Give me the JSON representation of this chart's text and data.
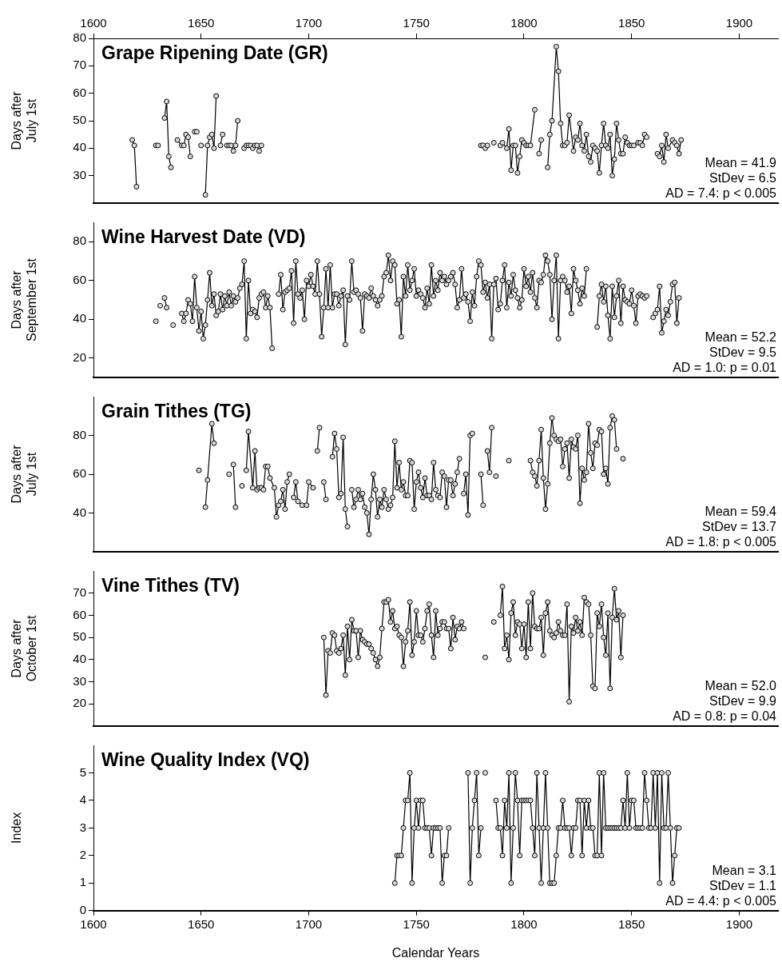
{
  "chart_data": [
    {
      "type": "line",
      "title": "Grape Ripening Date (GR)",
      "ylabel": "Days after July 1st",
      "color": "#000000",
      "marker": "circle",
      "tick_labels": "y",
      "xlim": [
        1600,
        1918
      ],
      "x2lim": [
        1600,
        1918
      ],
      "x2ticks": [
        1600,
        1650,
        1700,
        1750,
        1800,
        1850,
        1900
      ],
      "ylim": [
        20,
        80
      ],
      "yticks": [
        30,
        40,
        50,
        60,
        70,
        80
      ],
      "annotations": [
        "Mean = 41.9",
        "StDev = 6.5",
        "AD = 7.4: p < 0.005"
      ],
      "x": [
        1618,
        1619,
        1620,
        1625,
        1629,
        1629.5,
        1630,
        1632,
        1633,
        1634,
        1635,
        1636,
        1638,
        1639,
        1641,
        1642,
        1643,
        1644,
        1645,
        1646,
        1647,
        1647.5,
        1648,
        1649,
        1650,
        1651,
        1652,
        1653,
        1654,
        1655,
        1656,
        1657,
        1658,
        1659,
        1660,
        1661,
        1662,
        1663,
        1664,
        1665,
        1666,
        1667,
        1669,
        1670,
        1671,
        1672,
        1673,
        1674,
        1675,
        1676,
        1677,
        1678,
        1730,
        1780,
        1780.5,
        1781,
        1781.5,
        1782,
        1782.5,
        1783,
        1784,
        1786,
        1788,
        1789,
        1790,
        1792,
        1793,
        1794,
        1795,
        1796,
        1797,
        1798,
        1799,
        1800,
        1801,
        1802,
        1803,
        1805,
        1806,
        1807,
        1808,
        1809,
        1811,
        1812,
        1813,
        1815,
        1816,
        1817,
        1818,
        1819,
        1820,
        1821,
        1823,
        1824,
        1825,
        1826,
        1827,
        1828,
        1829,
        1830,
        1831,
        1832,
        1833,
        1834,
        1835,
        1836,
        1837,
        1838,
        1839,
        1840,
        1841,
        1842,
        1843,
        1844,
        1845,
        1846,
        1847,
        1848,
        1849,
        1850,
        1851,
        1853,
        1854,
        1855,
        1856,
        1857,
        1859,
        1862,
        1863,
        1864,
        1865,
        1866,
        1867,
        1869,
        1870,
        1871,
        1872,
        1873
      ],
      "values": [
        43,
        41,
        26,
        null,
        41,
        null,
        41,
        null,
        51,
        57,
        37,
        33,
        null,
        43,
        41,
        41,
        45,
        44,
        37,
        null,
        46,
        null,
        46,
        null,
        41,
        null,
        23,
        41,
        44,
        45,
        40,
        59,
        null,
        41,
        45,
        null,
        41,
        41,
        41,
        39,
        41,
        50,
        null,
        40,
        41,
        41,
        41,
        40,
        41,
        41,
        39,
        41,
        null,
        41,
        null,
        41,
        null,
        40,
        null,
        41,
        null,
        42,
        null,
        41,
        42,
        40,
        47,
        32,
        41,
        41,
        31,
        37,
        43,
        42,
        41,
        41,
        41,
        54,
        null,
        38,
        43,
        null,
        33,
        45,
        50,
        77,
        68,
        49,
        41,
        41,
        42,
        52,
        39,
        44,
        43,
        49,
        41,
        39,
        45,
        37,
        35,
        41,
        40,
        39,
        31,
        41,
        49,
        41,
        40,
        45,
        30,
        36,
        49,
        43,
        38,
        38,
        44,
        42,
        41,
        41,
        41,
        42,
        42,
        41,
        45,
        44,
        null,
        38,
        37,
        41,
        35,
        45,
        40,
        43,
        42,
        41,
        38,
        43
      ]
    },
    {
      "type": "line",
      "title": "Wine Harvest Date (VD)",
      "ylabel": "Days after September 1st",
      "color": "#000000",
      "marker": "circle",
      "tick_labels": "y",
      "xlim": [
        1600,
        1918
      ],
      "ylim": [
        10,
        90
      ],
      "yticks": [
        20,
        40,
        60,
        80
      ],
      "annotations": [
        "Mean = 52.2",
        "StDev = 9.5",
        "AD = 1.0: p = 0.01"
      ],
      "x": [
        1629,
        1630,
        1631,
        1632,
        1633,
        1634,
        1635,
        1636,
        1637,
        1638,
        1639,
        1640,
        1641,
        1642,
        1643,
        1644,
        1645,
        1646,
        1647,
        1648,
        1649,
        1650,
        1651,
        1652,
        1653,
        1654,
        1655,
        1656,
        1657,
        1658,
        1659,
        1660,
        1661,
        1662,
        1663,
        1664,
        1665,
        1666,
        1667,
        1668,
        1669,
        1670,
        1671,
        1672,
        1673,
        1674,
        1675,
        1676,
        1677,
        1678,
        1679,
        1680,
        1681,
        1682,
        1683,
        1684,
        1685,
        1686,
        1687,
        1688,
        1689,
        1690,
        1691,
        1692,
        1693,
        1694,
        1695,
        1696,
        1697,
        1698,
        1699,
        1700,
        1701,
        1702,
        1703,
        1704,
        1705,
        1706,
        1707,
        1708,
        1709,
        1710,
        1711,
        1712,
        1713,
        1714,
        1715,
        1716,
        1717,
        1718,
        1719,
        1720,
        1721,
        1722,
        1723,
        1724,
        1725,
        1726,
        1727,
        1728,
        1729,
        1730,
        1731,
        1732,
        1733,
        1734,
        1735,
        1736,
        1737,
        1738,
        1739,
        1740,
        1741,
        1742,
        1743,
        1744,
        1745,
        1746,
        1747,
        1748,
        1749,
        1750,
        1751,
        1752,
        1753,
        1754,
        1755,
        1756,
        1757,
        1758,
        1759,
        1760,
        1761,
        1762,
        1763,
        1764,
        1765,
        1766,
        1767,
        1768,
        1769,
        1770,
        1771,
        1772,
        1773,
        1774,
        1775,
        1776,
        1777,
        1778,
        1779,
        1780,
        1781,
        1782,
        1783,
        1784,
        1785,
        1786,
        1787,
        1788,
        1789,
        1790,
        1791,
        1792,
        1793,
        1794,
        1795,
        1796,
        1797,
        1798,
        1799,
        1800,
        1801,
        1802,
        1803,
        1804,
        1805,
        1806,
        1807,
        1808,
        1809,
        1810,
        1811,
        1812,
        1813,
        1814,
        1815,
        1816,
        1817,
        1818,
        1819,
        1820,
        1821,
        1822,
        1823,
        1824,
        1825,
        1826,
        1827,
        1828,
        1829,
        1830,
        1831,
        1832,
        1833,
        1834,
        1835,
        1836,
        1837,
        1838,
        1839,
        1840,
        1841,
        1842,
        1843,
        1844,
        1845,
        1846,
        1847,
        1848,
        1849,
        1850,
        1851,
        1852,
        1853,
        1854,
        1855,
        1856,
        1857,
        1858,
        1859,
        1860,
        1861,
        1862,
        1863,
        1864,
        1865,
        1866,
        1867,
        1868,
        1869,
        1870,
        1871,
        1872
      ],
      "values": [
        39,
        null,
        47,
        null,
        51,
        46,
        null,
        null,
        37,
        null,
        null,
        null,
        43,
        39,
        43,
        50,
        48,
        39,
        62,
        46,
        34,
        44,
        30,
        37,
        50,
        64,
        47,
        53,
        42,
        44,
        53,
        45,
        52,
        47,
        54,
        47,
        52,
        49,
        51,
        56,
        58,
        70,
        30,
        60,
        43,
        45,
        44,
        41,
        51,
        53,
        54,
        46,
        52,
        46,
        25,
        null,
        null,
        53,
        63,
        45,
        54,
        55,
        56,
        65,
        38,
        70,
        53,
        51,
        55,
        40,
        60,
        57,
        63,
        57,
        53,
        70,
        53,
        31,
        46,
        66,
        46,
        68,
        46,
        53,
        53,
        47,
        52,
        55,
        27,
        52,
        50,
        70,
        54,
        55,
        53,
        51,
        34,
        53,
        52,
        51,
        56,
        52,
        50,
        47,
        50,
        52,
        62,
        64,
        73,
        60,
        70,
        68,
        48,
        50,
        31,
        62,
        52,
        68,
        55,
        60,
        66,
        52,
        55,
        53,
        51,
        46,
        56,
        48,
        68,
        52,
        60,
        55,
        64,
        60,
        62,
        58,
        60,
        62,
        64,
        58,
        46,
        50,
        66,
        51,
        53,
        49,
        39,
        54,
        47,
        62,
        70,
        68,
        54,
        59,
        51,
        58,
        30,
        58,
        61,
        45,
        48,
        60,
        68,
        46,
        59,
        52,
        63,
        55,
        51,
        46,
        50,
        66,
        57,
        62,
        54,
        64,
        51,
        46,
        60,
        59,
        63,
        73,
        70,
        63,
        40,
        60,
        73,
        30,
        60,
        62,
        60,
        54,
        57,
        43,
        66,
        60,
        55,
        48,
        56,
        52,
        66,
        null,
        null,
        null,
        null,
        36,
        52,
        58,
        49,
        57,
        42,
        30,
        57,
        41,
        52,
        60,
        38,
        57,
        50,
        49,
        48,
        55,
        47,
        38,
        52,
        53,
        52,
        51,
        52,
        null,
        null,
        41,
        43,
        45,
        57,
        33,
        39,
        45,
        42,
        49,
        58,
        59,
        38,
        51
      ]
    },
    {
      "type": "line",
      "title": "Grain Tithes (TG)",
      "ylabel": "Days after July 1st",
      "color": "#000000",
      "marker": "circle",
      "tick_labels": "y",
      "xlim": [
        1600,
        1918
      ],
      "ylim": [
        20,
        100
      ],
      "yticks": [
        40,
        60,
        80
      ],
      "annotations": [
        "Mean = 59.4",
        "StDev = 13.7",
        "AD = 1.8: p < 0.005"
      ],
      "x": [
        1649,
        1650,
        1652,
        1653,
        1655,
        1656,
        1659,
        1663,
        1664,
        1665,
        1666,
        1667,
        1669,
        1670,
        1671,
        1672,
        1674,
        1675,
        1676,
        1677,
        1678,
        1679,
        1680,
        1681,
        1682,
        1684,
        1685,
        1686,
        1687,
        1688,
        1689,
        1690,
        1691,
        1692,
        1693,
        1694,
        1695,
        1697,
        1698,
        1699,
        1700,
        1702,
        1703,
        1704,
        1705,
        1706,
        1707,
        1708,
        1709,
        1711,
        1712,
        1713,
        1714,
        1715,
        1716,
        1717,
        1718,
        1719,
        1720,
        1721,
        1722,
        1723,
        1724,
        1725,
        1726,
        1727,
        1728,
        1729,
        1730,
        1731,
        1732,
        1733,
        1734,
        1735,
        1736,
        1737,
        1738,
        1739,
        1740,
        1741,
        1742,
        1743,
        1744,
        1745,
        1746,
        1747,
        1748,
        1749,
        1750,
        1751,
        1752,
        1753,
        1754,
        1755,
        1756,
        1757,
        1758,
        1759,
        1760,
        1761,
        1762,
        1763,
        1764,
        1765,
        1766,
        1767,
        1768,
        1769,
        1770,
        1771,
        1772,
        1773,
        1774,
        1775,
        1776,
        1778,
        1780,
        1781,
        1782,
        1783,
        1784,
        1785,
        1786,
        1787,
        1788,
        1793,
        1798,
        1803,
        1804,
        1805,
        1806,
        1807,
        1808,
        1809,
        1810,
        1811,
        1812,
        1813,
        1814,
        1815,
        1816,
        1817,
        1818,
        1819,
        1820,
        1821,
        1822,
        1823,
        1824,
        1825,
        1826,
        1827,
        1828,
        1829,
        1830,
        1831,
        1832,
        1833,
        1834,
        1835,
        1836,
        1837,
        1838,
        1839,
        1840,
        1841,
        1842,
        1843,
        1844,
        1846
      ],
      "values": [
        62,
        null,
        43,
        57,
        86,
        76,
        null,
        60,
        null,
        65,
        43,
        null,
        54,
        null,
        62,
        82,
        53,
        72,
        52,
        53,
        53,
        52,
        64,
        64,
        58,
        53,
        38,
        44,
        46,
        52,
        42,
        56,
        60,
        null,
        48,
        56,
        46,
        44,
        null,
        44,
        56,
        53,
        null,
        72,
        84,
        null,
        56,
        47,
        null,
        69,
        81,
        73,
        48,
        50,
        79,
        42,
        33,
        null,
        52,
        43,
        47,
        52,
        47,
        50,
        43,
        40,
        29,
        47,
        60,
        52,
        38,
        47,
        43,
        52,
        47,
        42,
        44,
        48,
        77,
        53,
        66,
        52,
        56,
        49,
        49,
        67,
        66,
        42,
        56,
        61,
        53,
        48,
        58,
        49,
        49,
        47,
        66,
        52,
        49,
        48,
        61,
        59,
        43,
        57,
        57,
        49,
        55,
        61,
        68,
        null,
        50,
        60,
        39,
        80,
        81,
        null,
        60,
        44,
        null,
        72,
        61,
        84,
        null,
        59,
        null,
        67,
        null,
        67,
        61,
        59,
        54,
        67,
        83,
        58,
        42,
        55,
        76,
        89,
        80,
        78,
        77,
        78,
        64,
        73,
        76,
        58,
        78,
        74,
        73,
        80,
        45,
        63,
        57,
        61,
        86,
        71,
        63,
        76,
        75,
        83,
        82,
        60,
        63,
        55,
        84,
        90,
        88,
        73,
        null,
        68
      ]
    },
    {
      "type": "line",
      "title": "Vine Tithes (TV)",
      "ylabel": "Days after October 1st",
      "color": "#000000",
      "marker": "circle",
      "tick_labels": "y",
      "xlim": [
        1600,
        1918
      ],
      "ylim": [
        10,
        80
      ],
      "yticks": [
        20,
        30,
        40,
        50,
        60,
        70
      ],
      "annotations": [
        "Mean = 52.0",
        "StDev = 9.9",
        "AD = 0.8: p = 0.04"
      ],
      "x": [
        1707,
        1708,
        1709,
        1710,
        1711,
        1712,
        1713,
        1714,
        1715,
        1716,
        1717,
        1718,
        1719,
        1720,
        1721,
        1722,
        1723,
        1724,
        1725,
        1726,
        1727,
        1728,
        1729,
        1730,
        1731,
        1732,
        1733,
        1734,
        1735,
        1736,
        1737,
        1738,
        1739,
        1740,
        1741,
        1742,
        1743,
        1744,
        1745,
        1746,
        1747,
        1748,
        1749,
        1750,
        1751,
        1752,
        1753,
        1754,
        1755,
        1756,
        1757,
        1758,
        1759,
        1760,
        1761,
        1762,
        1763,
        1764,
        1765,
        1766,
        1767,
        1768,
        1769,
        1770,
        1771,
        1772,
        1773,
        1782,
        1783,
        1786,
        1787,
        1789,
        1790,
        1791,
        1792,
        1793,
        1794,
        1795,
        1796,
        1797,
        1798,
        1799,
        1800,
        1801,
        1802,
        1803,
        1804,
        1805,
        1806,
        1807,
        1808,
        1809,
        1810,
        1811,
        1812,
        1813,
        1814,
        1815,
        1816,
        1817,
        1818,
        1819,
        1820,
        1821,
        1822,
        1823,
        1824,
        1825,
        1826,
        1827,
        1828,
        1829,
        1830,
        1831,
        1832,
        1833,
        1834,
        1835,
        1836,
        1837,
        1838,
        1839,
        1840,
        1841,
        1842,
        1843,
        1844,
        1845,
        1846
      ],
      "values": [
        50,
        24,
        44,
        43,
        52,
        51,
        44,
        43,
        45,
        51,
        33,
        55,
        40,
        58,
        53,
        53,
        41,
        53,
        49,
        48,
        47,
        47,
        45,
        43,
        40,
        37,
        41,
        54,
        66,
        66,
        67,
        57,
        62,
        54,
        55,
        51,
        50,
        37,
        48,
        53,
        66,
        42,
        48,
        62,
        51,
        51,
        48,
        54,
        62,
        65,
        51,
        41,
        62,
        51,
        54,
        57,
        57,
        54,
        54,
        45,
        59,
        49,
        55,
        54,
        57,
        54,
        null,
        41,
        null,
        57,
        null,
        60,
        73,
        45,
        51,
        40,
        61,
        66,
        51,
        57,
        56,
        45,
        56,
        41,
        66,
        45,
        70,
        55,
        54,
        54,
        59,
        42,
        61,
        66,
        53,
        51,
        50,
        52,
        57,
        53,
        51,
        51,
        65,
        21,
        55,
        52,
        59,
        53,
        57,
        51,
        68,
        66,
        65,
        51,
        28,
        27,
        61,
        55,
        65,
        50,
        42,
        61,
        27,
        59,
        72,
        58,
        62,
        41,
        60
      ]
    },
    {
      "type": "line",
      "title": "Wine Quality Index (VQ)",
      "ylabel": "Index",
      "xlabel": "Calendar Years",
      "color": "#000000",
      "marker": "circle",
      "xlim": [
        1600,
        1918
      ],
      "xticks": [
        1600,
        1650,
        1700,
        1750,
        1800,
        1850,
        1900
      ],
      "ylim": [
        0,
        6
      ],
      "yticks": [
        0,
        1,
        2,
        3,
        4,
        5
      ],
      "annotations": [
        "Mean = 3.1",
        "StDev = 1.1",
        "AD = 4.4: p < 0.005"
      ],
      "x": [
        1740,
        1741,
        1742,
        1743,
        1744,
        1745,
        1746,
        1747,
        1748,
        1749,
        1750,
        1751,
        1752,
        1753,
        1754,
        1755,
        1756,
        1757,
        1758,
        1759,
        1760,
        1761,
        1762,
        1763,
        1764,
        1765,
        1766,
        1774,
        1775,
        1776,
        1777,
        1778,
        1779,
        1780,
        1781,
        1782,
        1783,
        1787,
        1788,
        1789,
        1790,
        1791,
        1792,
        1793,
        1794,
        1795,
        1796,
        1797,
        1798,
        1799,
        1800,
        1801,
        1802,
        1803,
        1804,
        1805,
        1806,
        1807,
        1808,
        1809,
        1810,
        1811,
        1812,
        1813,
        1814,
        1815,
        1816,
        1817,
        1818,
        1819,
        1820,
        1821,
        1822,
        1823,
        1824,
        1825,
        1826,
        1827,
        1828,
        1829,
        1830,
        1831,
        1832,
        1833,
        1834,
        1835,
        1836,
        1837,
        1838,
        1839,
        1840,
        1841,
        1842,
        1843,
        1844,
        1845,
        1846,
        1847,
        1848,
        1849,
        1850,
        1851,
        1852,
        1853,
        1854,
        1855,
        1856,
        1857,
        1858,
        1859,
        1860,
        1861,
        1862,
        1863,
        1864,
        1865,
        1866,
        1867,
        1868,
        1869,
        1870,
        1871,
        1872
      ],
      "values": [
        1,
        2,
        2,
        2,
        3,
        4,
        4,
        5,
        1,
        3,
        4,
        3,
        4,
        4,
        3,
        3,
        3,
        2,
        3,
        3,
        3,
        3,
        1,
        2,
        2,
        3,
        null,
        5,
        1,
        3,
        4,
        5,
        2,
        3,
        null,
        5,
        null,
        4,
        3,
        3,
        2,
        4,
        3,
        5,
        1,
        3,
        5,
        4,
        2,
        4,
        4,
        4,
        4,
        4,
        3,
        2,
        5,
        3,
        1,
        3,
        5,
        3,
        1,
        1,
        1,
        2,
        3,
        3,
        4,
        3,
        3,
        3,
        2,
        3,
        3,
        4,
        4,
        2,
        4,
        3,
        4,
        3,
        3,
        2,
        2,
        5,
        2,
        5,
        3,
        3,
        3,
        3,
        3,
        3,
        3,
        3,
        4,
        3,
        5,
        3,
        4,
        4,
        3,
        3,
        3,
        3,
        5,
        4,
        3,
        3,
        5,
        3,
        5,
        1,
        5,
        3,
        3,
        5,
        3,
        1,
        2,
        3,
        3
      ]
    }
  ]
}
